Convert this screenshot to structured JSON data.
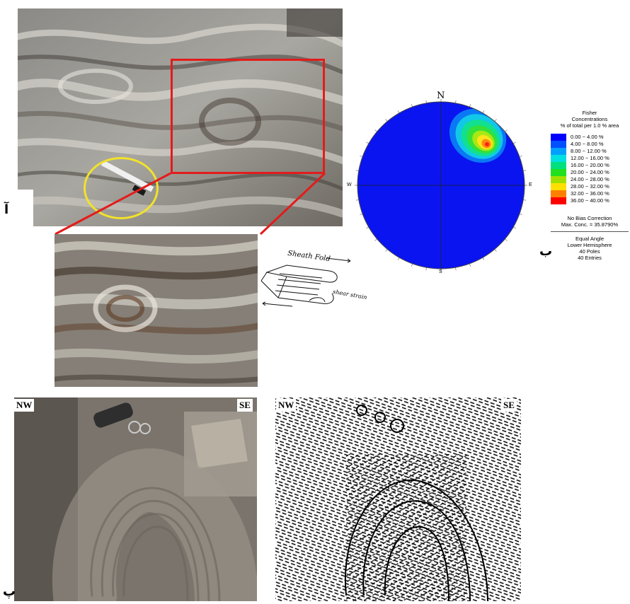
{
  "panel_labels": {
    "a": "آ",
    "b": "ب",
    "c": "پ"
  },
  "figure": {
    "sheath_fold_label": "Sheath Fold",
    "shear_strain_label": "shear strain"
  },
  "stereonet": {
    "north": "N",
    "south": "S",
    "east": "E",
    "west": "W",
    "legend_title": [
      "Fisher",
      "Concentrations",
      "% of total per 1.0 % area"
    ],
    "legend_items": [
      {
        "label": "0.00 ~ 4.00 %",
        "color": "#0000ff"
      },
      {
        "label": "4.00 ~ 8.00 %",
        "color": "#0050ff"
      },
      {
        "label": "8.00 ~ 12.00 %",
        "color": "#00a0ff"
      },
      {
        "label": "12.00 ~ 16.00 %",
        "color": "#00e0e0"
      },
      {
        "label": "16.00 ~ 20.00 %",
        "color": "#00e080"
      },
      {
        "label": "20.00 ~ 24.00 %",
        "color": "#20e020"
      },
      {
        "label": "24.00 ~ 28.00 %",
        "color": "#a0e000"
      },
      {
        "label": "28.00 ~ 32.00 %",
        "color": "#ffe000"
      },
      {
        "label": "32.00 ~ 36.00 %",
        "color": "#ff8000"
      },
      {
        "label": "36.00 ~ 40.00 %",
        "color": "#ff0000"
      }
    ],
    "bias": "No Bias Correction",
    "max_conc": "Max. Conc. = 35.8790%",
    "projection": "Equal Angle",
    "hemisphere": "Lower Hemisphere",
    "poles": "40 Poles",
    "entries": "40 Entries"
  },
  "bottom_left": {
    "nw": "NW",
    "se": "SE"
  },
  "bottom_right": {
    "nw": "NW",
    "se": "SE"
  }
}
